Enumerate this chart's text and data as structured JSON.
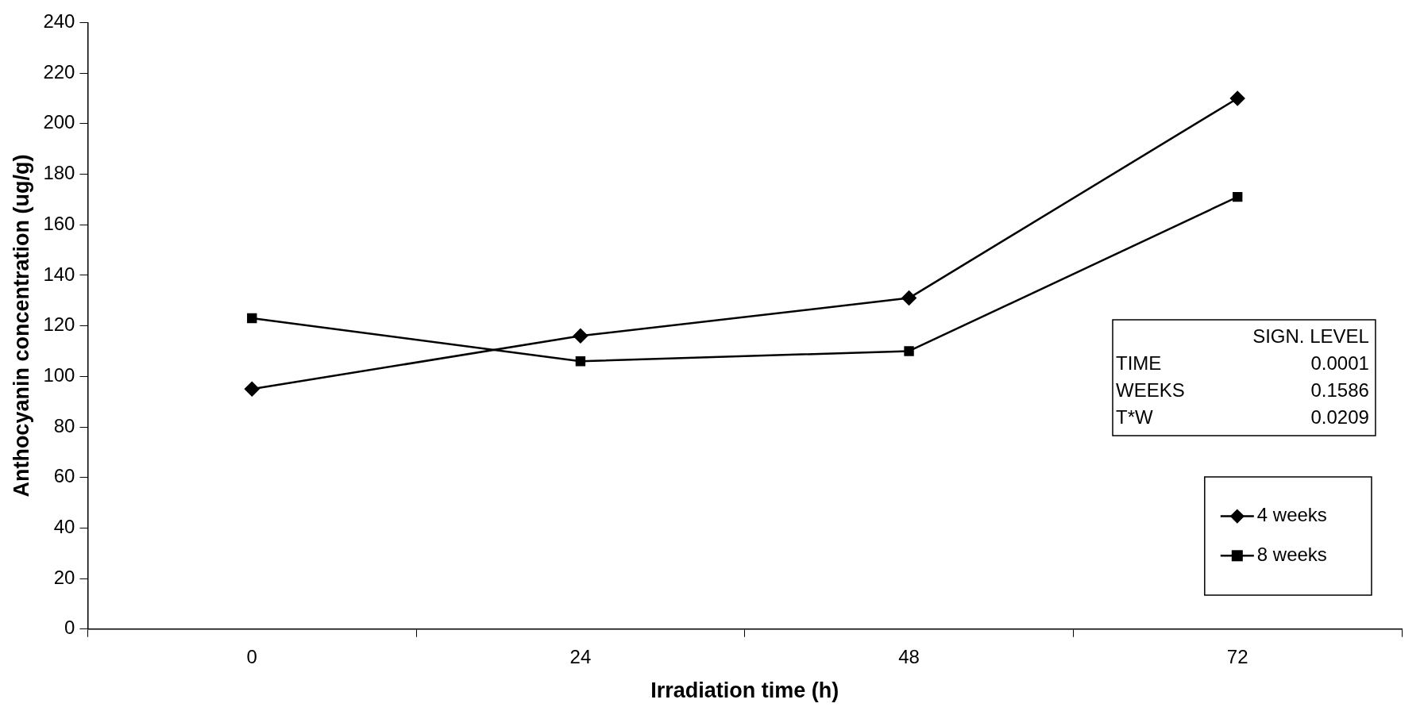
{
  "chart_data": {
    "type": "line",
    "xlabel": "Irradiation time (h)",
    "ylabel": "Anthocyanin concentration (ug/g)",
    "categories": [
      "0",
      "24",
      "48",
      "72"
    ],
    "series": [
      {
        "name": "4 weeks",
        "color": "#000000",
        "values": [
          95,
          116,
          131,
          210
        ],
        "marker": "diamond"
      },
      {
        "name": "8 weeks",
        "color": "#000000",
        "values": [
          123,
          106,
          110,
          171
        ],
        "marker": "square"
      }
    ],
    "ylim": [
      0,
      240
    ],
    "yticks": [
      0,
      20,
      40,
      60,
      80,
      100,
      120,
      140,
      160,
      180,
      200,
      220,
      240
    ],
    "grid": false,
    "legend": "bottom right",
    "line_style": "solid",
    "annotations": [
      "SIGN. LEVEL",
      "TIME",
      "0.0001",
      "WEEKS",
      "0.1586",
      "T*W",
      "0.0209"
    ]
  }
}
